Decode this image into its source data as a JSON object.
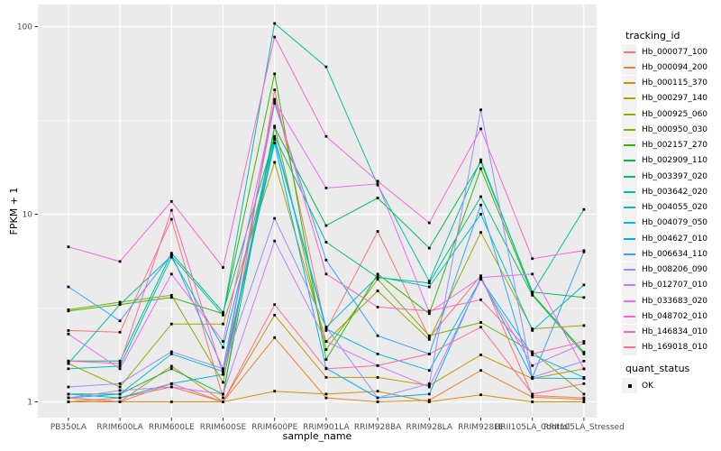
{
  "figure": {
    "background": "#FFFFFF",
    "panel_background": "#EBEBEB",
    "grid_major_color": "#FFFFFF",
    "grid_minor_color": "#FFFFFF",
    "tick_color": "#333333",
    "tick_label_color": "#4D4D4D",
    "point_color": "#000000"
  },
  "axes": {
    "y_title": "FPKM + 1",
    "x_title": "sample_name",
    "y_scale": "log10",
    "y_ticks": [
      1,
      10,
      100
    ],
    "y_tick_labels": [
      "1",
      "10",
      "100"
    ],
    "y_minor_ticks": [
      3.1623,
      31.623
    ]
  },
  "legend": {
    "tracking_title": "tracking_id",
    "quant_title": "quant_status",
    "quant_items": [
      {
        "label": "OK"
      }
    ],
    "key_fill": "#F2F2F2"
  },
  "chart_data": {
    "type": "line",
    "title": "",
    "xlabel": "sample_name",
    "ylabel": "FPKM + 1",
    "ylim": [
      0.85,
      130
    ],
    "grid": true,
    "legend_position": "right",
    "x_categories": [
      "PB350LA",
      "RRIM600LA",
      "RRIM600LE",
      "RRIM600SE",
      "RRIM600PE",
      "RRIM901LA",
      "RRIM928BA",
      "RRIM928LA",
      "RRIM928LE",
      "RRII105LA_Control",
      "RRII105LA_Stressed"
    ],
    "series": [
      {
        "name": "Hb_000077_100",
        "color": "#F8766D",
        "values": [
          2.4,
          2.35,
          9.4,
          1.05,
          46,
          2.4,
          8.1,
          2.2,
          4.7,
          1.08,
          1.05
        ]
      },
      {
        "name": "Hb_000094_200",
        "color": "#EA8331",
        "values": [
          1.0,
          1.05,
          1.2,
          1.0,
          2.2,
          1.05,
          1.0,
          1.02,
          1.47,
          1.06,
          1.03
        ]
      },
      {
        "name": "Hb_000115_370",
        "color": "#D89000",
        "values": [
          1.0,
          1.0,
          1.0,
          1.0,
          1.14,
          1.1,
          1.14,
          1.0,
          1.09,
          1.0,
          1.0
        ]
      },
      {
        "name": "Hb_000297_140",
        "color": "#C09B00",
        "values": [
          1.05,
          1.0,
          1.55,
          1.0,
          2.9,
          1.35,
          1.35,
          1.22,
          1.78,
          1.33,
          1.5
        ]
      },
      {
        "name": "Hb_000925_060",
        "color": "#A3A500",
        "values": [
          1.6,
          1.2,
          2.6,
          2.6,
          18.9,
          2.1,
          3.9,
          2.15,
          8.0,
          2.45,
          2.55
        ]
      },
      {
        "name": "Hb_000950_030",
        "color": "#7CAE00",
        "values": [
          3.1,
          3.4,
          3.7,
          1.27,
          29.5,
          1.9,
          4.5,
          2.25,
          2.65,
          1.85,
          1.1
        ]
      },
      {
        "name": "Hb_002157_270",
        "color": "#39B600",
        "values": [
          3.05,
          3.3,
          3.6,
          2.95,
          56,
          1.68,
          4.8,
          2.95,
          17.5,
          3.75,
          1.84
        ]
      },
      {
        "name": "Hb_002909_110",
        "color": "#00BB4E",
        "values": [
          1.1,
          1.1,
          1.5,
          1.1,
          29,
          8.7,
          12.2,
          6.6,
          19,
          3.85,
          3.6
        ]
      },
      {
        "name": "Hb_003397_020",
        "color": "#00BF7D",
        "values": [
          1.65,
          1.65,
          6.2,
          3.0,
          26,
          7.1,
          4.6,
          4.3,
          12.4,
          3.7,
          1.8
        ]
      },
      {
        "name": "Hb_003642_020",
        "color": "#00C1A3",
        "values": [
          1.6,
          3.3,
          6.0,
          2.9,
          104,
          61,
          14.3,
          4.4,
          19.5,
          3.8,
          10.6
        ]
      },
      {
        "name": "Hb_004055_020",
        "color": "#00BFC4",
        "values": [
          1.5,
          1.55,
          5.9,
          1.95,
          25.5,
          2.5,
          4.65,
          4.1,
          10.0,
          2.4,
          4.2
        ]
      },
      {
        "name": "Hb_004079_050",
        "color": "#00BAE0",
        "values": [
          1.05,
          1.1,
          1.8,
          1.45,
          25,
          2.45,
          1.8,
          1.47,
          4.5,
          1.78,
          1.35
        ]
      },
      {
        "name": "Hb_004627_010",
        "color": "#00B0F6",
        "values": [
          1.1,
          1.05,
          1.25,
          1.4,
          24,
          1.51,
          1.05,
          1.1,
          4.6,
          1.34,
          1.33
        ]
      },
      {
        "name": "Hb_006634_110",
        "color": "#35A2FF",
        "values": [
          4.1,
          2.7,
          6.1,
          1.5,
          39,
          5.7,
          2.25,
          1.8,
          11.2,
          1.35,
          6.3
        ]
      },
      {
        "name": "Hb_008206_090",
        "color": "#9590FF",
        "values": [
          1.2,
          1.25,
          1.85,
          1.5,
          9.5,
          2.5,
          1.05,
          1.25,
          36,
          1.35,
          1.65
        ]
      },
      {
        "name": "Hb_012707_010",
        "color": "#C77CFF",
        "values": [
          1.05,
          1.15,
          1.2,
          1.1,
          7.2,
          2.1,
          1.56,
          1.2,
          4.5,
          1.56,
          2.05
        ]
      },
      {
        "name": "Hb_033683_020",
        "color": "#E76BF3",
        "values": [
          2.3,
          1.5,
          4.8,
          2.1,
          40,
          13.8,
          14.5,
          3.0,
          4.6,
          4.8,
          1.5
        ]
      },
      {
        "name": "Hb_048702_010",
        "color": "#FA62DB",
        "values": [
          6.7,
          5.6,
          11.7,
          5.2,
          88,
          26,
          15,
          9.0,
          28.5,
          5.8,
          6.4
        ]
      },
      {
        "name": "Hb_146834_010",
        "color": "#FF62BC",
        "values": [
          1.65,
          1.6,
          10.5,
          1.4,
          41,
          4.8,
          3.2,
          3.05,
          3.5,
          1.8,
          2.1
        ]
      },
      {
        "name": "Hb_169018_010",
        "color": "#FF6A98",
        "values": [
          1.05,
          1.0,
          1.25,
          1.0,
          3.3,
          1.5,
          1.56,
          1.8,
          2.5,
          1.1,
          1.25
        ]
      }
    ]
  }
}
